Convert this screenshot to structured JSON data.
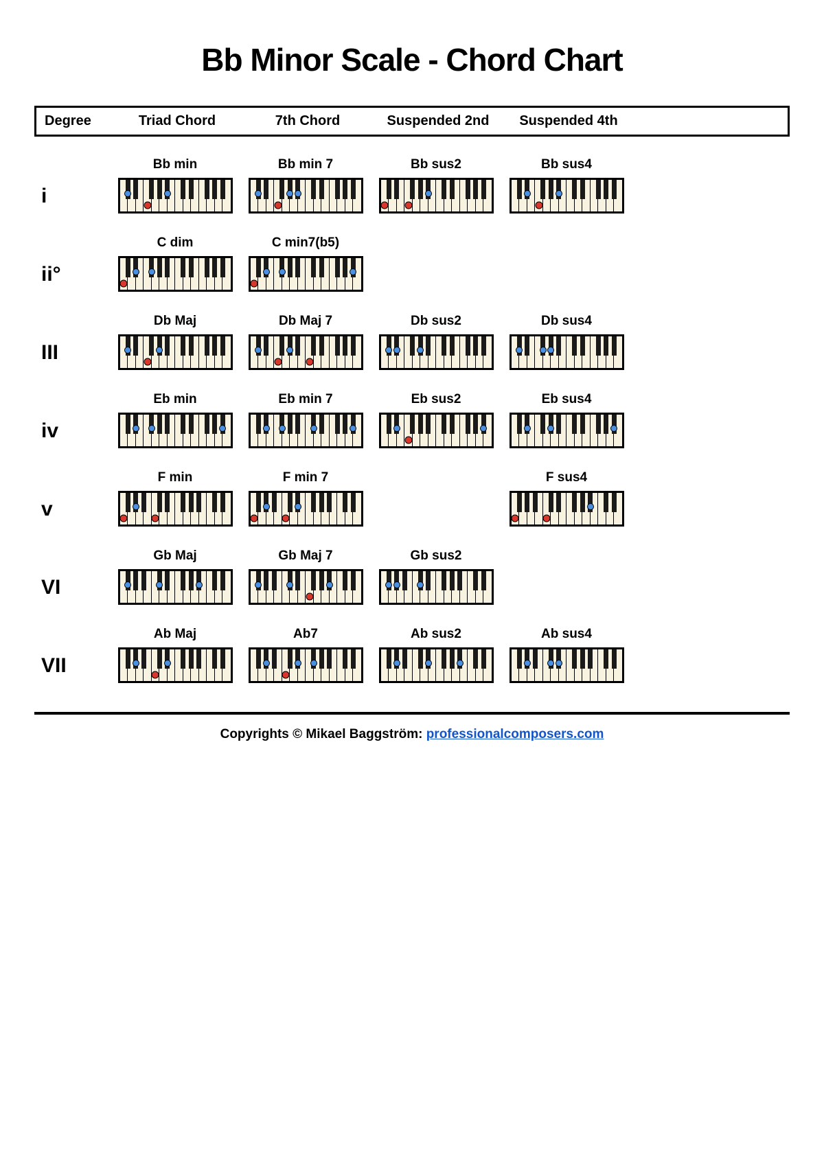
{
  "title": "Bb Minor Scale - Chord Chart",
  "columns": {
    "degree": "Degree",
    "triad": "Triad Chord",
    "seventh": "7th Chord",
    "sus2": "Suspended 2nd",
    "sus4": "Suspended 4th"
  },
  "style": {
    "white_key_color": "#f8f3e0",
    "black_key_color": "#1a1a1a",
    "dot_blue": "#4a90e2",
    "dot_red": "#d9372b",
    "dot_size_black": 10,
    "dot_size_white": 11,
    "white_key_w": 11.5,
    "black_key_w": 7,
    "black_key_h": 28,
    "kb_height": 46,
    "white_keys": 14
  },
  "black_positions": [
    0.5,
    1.5,
    3.5,
    4.5,
    5.5,
    7.5,
    8.5,
    10.5,
    11.5,
    12.5
  ],
  "rows": [
    {
      "degree": "i",
      "cells": [
        {
          "label": "Bb min",
          "dots": [
            {
              "n": "Bb",
              "c": "b"
            },
            {
              "n": "Db",
              "c": "b"
            },
            {
              "n": "F",
              "c": "r"
            }
          ]
        },
        {
          "label": "Bb min 7",
          "dots": [
            {
              "n": "Bb",
              "c": "b"
            },
            {
              "n": "Db",
              "c": "b"
            },
            {
              "n": "F",
              "c": "r"
            },
            {
              "n": "Ab",
              "c": "b"
            }
          ]
        },
        {
          "label": "Bb sus2",
          "dots": [
            {
              "n": "Bb",
              "c": "b"
            },
            {
              "n": "C",
              "c": "r"
            },
            {
              "n": "F",
              "c": "r"
            }
          ]
        },
        {
          "label": "Bb sus4",
          "dots": [
            {
              "n": "Bb",
              "c": "b"
            },
            {
              "n": "Eb",
              "c": "b"
            },
            {
              "n": "F",
              "c": "r"
            }
          ]
        }
      ]
    },
    {
      "degree": "ii°",
      "cells": [
        {
          "label": "C dim",
          "dots": [
            {
              "n": "C",
              "c": "r"
            },
            {
              "n": "Eb",
              "c": "b"
            },
            {
              "n": "Gb",
              "c": "b"
            }
          ]
        },
        {
          "label": "C min7(b5)",
          "dots": [
            {
              "n": "C",
              "c": "r"
            },
            {
              "n": "Eb",
              "c": "b"
            },
            {
              "n": "Gb",
              "c": "b"
            },
            {
              "n": "Bb2",
              "c": "b"
            }
          ]
        },
        null,
        null
      ]
    },
    {
      "degree": "III",
      "cells": [
        {
          "label": "Db Maj",
          "dots": [
            {
              "n": "Db",
              "c": "b"
            },
            {
              "n": "F",
              "c": "r"
            },
            {
              "n": "Ab",
              "c": "b"
            }
          ]
        },
        {
          "label": "Db Maj 7",
          "dots": [
            {
              "n": "Db",
              "c": "b"
            },
            {
              "n": "F",
              "c": "r"
            },
            {
              "n": "Ab",
              "c": "b"
            },
            {
              "n": "C2",
              "c": "r"
            }
          ]
        },
        {
          "label": "Db sus2",
          "dots": [
            {
              "n": "Db",
              "c": "b"
            },
            {
              "n": "Eb",
              "c": "b"
            },
            {
              "n": "Ab",
              "c": "b"
            }
          ]
        },
        {
          "label": "Db sus4",
          "dots": [
            {
              "n": "Db",
              "c": "b"
            },
            {
              "n": "Gb",
              "c": "b"
            },
            {
              "n": "Ab",
              "c": "b"
            }
          ]
        }
      ]
    },
    {
      "degree": "iv",
      "cells": [
        {
          "label": "Eb min",
          "dots": [
            {
              "n": "Eb",
              "c": "b"
            },
            {
              "n": "Gb",
              "c": "b"
            },
            {
              "n": "Bb2",
              "c": "b"
            }
          ]
        },
        {
          "label": "Eb min 7",
          "dots": [
            {
              "n": "Eb",
              "c": "b"
            },
            {
              "n": "Gb",
              "c": "b"
            },
            {
              "n": "Bb2",
              "c": "b"
            },
            {
              "n": "Db2",
              "c": "b"
            }
          ]
        },
        {
          "label": "Eb sus2",
          "dots": [
            {
              "n": "Eb",
              "c": "b"
            },
            {
              "n": "F",
              "c": "r"
            },
            {
              "n": "Bb2",
              "c": "b"
            }
          ]
        },
        {
          "label": "Eb sus4",
          "dots": [
            {
              "n": "Eb",
              "c": "b"
            },
            {
              "n": "Ab",
              "c": "b"
            },
            {
              "n": "Bb2",
              "c": "b"
            }
          ]
        }
      ]
    },
    {
      "degree": "v",
      "cells": [
        {
          "label": "F min",
          "start": "F",
          "dots": [
            {
              "n": "F0",
              "c": "r"
            },
            {
              "n": "Ab0",
              "c": "b"
            },
            {
              "n": "C",
              "c": "r"
            }
          ]
        },
        {
          "label": "F min 7",
          "start": "F",
          "dots": [
            {
              "n": "F0",
              "c": "r"
            },
            {
              "n": "Ab0",
              "c": "b"
            },
            {
              "n": "C",
              "c": "r"
            },
            {
              "n": "Eb",
              "c": "b"
            }
          ]
        },
        null,
        {
          "label": "F sus4",
          "start": "F",
          "dots": [
            {
              "n": "F0",
              "c": "r"
            },
            {
              "n": "Bb",
              "c": "b"
            },
            {
              "n": "C",
              "c": "r"
            }
          ]
        }
      ]
    },
    {
      "degree": "VI",
      "cells": [
        {
          "label": "Gb Maj",
          "start": "F",
          "dots": [
            {
              "n": "Gb0",
              "c": "b"
            },
            {
              "n": "Bb",
              "c": "b"
            },
            {
              "n": "Db",
              "c": "b"
            }
          ]
        },
        {
          "label": "Gb Maj 7",
          "start": "F",
          "dots": [
            {
              "n": "Gb0",
              "c": "b"
            },
            {
              "n": "Bb",
              "c": "b"
            },
            {
              "n": "Db",
              "c": "b"
            },
            {
              "n": "F",
              "c": "r"
            }
          ]
        },
        {
          "label": "Gb sus2",
          "start": "F",
          "dots": [
            {
              "n": "Gb0",
              "c": "b"
            },
            {
              "n": "Ab0",
              "c": "b"
            },
            {
              "n": "Db",
              "c": "b"
            }
          ]
        },
        null
      ]
    },
    {
      "degree": "VII",
      "cells": [
        {
          "label": "Ab Maj",
          "start": "F",
          "dots": [
            {
              "n": "Ab0",
              "c": "b"
            },
            {
              "n": "C",
              "c": "r"
            },
            {
              "n": "Eb",
              "c": "b"
            }
          ]
        },
        {
          "label": "Ab7",
          "start": "F",
          "dots": [
            {
              "n": "Ab0",
              "c": "b"
            },
            {
              "n": "C",
              "c": "r"
            },
            {
              "n": "Eb",
              "c": "b"
            },
            {
              "n": "Gb",
              "c": "b"
            }
          ]
        },
        {
          "label": "Ab sus2",
          "start": "F",
          "dots": [
            {
              "n": "Ab0",
              "c": "b"
            },
            {
              "n": "Bb",
              "c": "b"
            },
            {
              "n": "Eb",
              "c": "b"
            }
          ]
        },
        {
          "label": "Ab sus4",
          "start": "F",
          "dots": [
            {
              "n": "Ab0",
              "c": "b"
            },
            {
              "n": "Db",
              "c": "b"
            },
            {
              "n": "Eb",
              "c": "b"
            }
          ]
        }
      ]
    }
  ],
  "footer": {
    "prefix": "Copyrights © Mikael Baggström: ",
    "link_text": "professionalcomposers.com",
    "link_href": "https://professionalcomposers.com"
  }
}
